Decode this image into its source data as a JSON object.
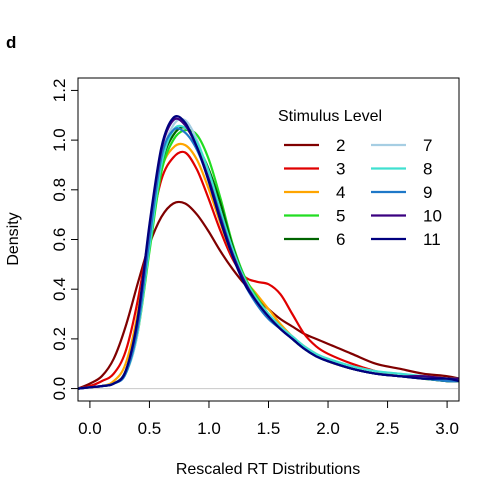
{
  "panel_label": "d",
  "chart_data": {
    "type": "line",
    "title": "",
    "xlabel": "Rescaled RT Distributions",
    "ylabel": "Density",
    "xlim": [
      -0.1,
      3.1
    ],
    "ylim": [
      -0.05,
      1.25
    ],
    "xticks": [
      0.0,
      0.5,
      1.0,
      1.5,
      2.0,
      2.5,
      3.0
    ],
    "xtick_labels": [
      "0.0",
      "0.5",
      "1.0",
      "1.5",
      "2.0",
      "2.5",
      "3.0"
    ],
    "yticks": [
      0.0,
      0.2,
      0.4,
      0.6,
      0.8,
      1.0,
      1.2
    ],
    "ytick_labels": [
      "0.0",
      "0.2",
      "0.4",
      "0.6",
      "0.8",
      "1.0",
      "1.2"
    ],
    "grid": false,
    "baseline": {
      "y": 0,
      "color": "#c8c8c8"
    },
    "legend": {
      "title": "Stimulus Level",
      "placement": "top-right",
      "columns": 2
    },
    "x": [
      -0.1,
      0.0,
      0.1,
      0.2,
      0.3,
      0.4,
      0.5,
      0.6,
      0.7,
      0.8,
      0.9,
      1.0,
      1.1,
      1.2,
      1.3,
      1.4,
      1.5,
      1.6,
      1.7,
      1.8,
      1.9,
      2.0,
      2.2,
      2.4,
      2.6,
      2.8,
      3.0,
      3.1
    ],
    "series": [
      {
        "name": "2",
        "color": "#800000",
        "values": [
          0.0,
          0.02,
          0.05,
          0.12,
          0.25,
          0.42,
          0.58,
          0.69,
          0.745,
          0.745,
          0.7,
          0.63,
          0.55,
          0.48,
          0.42,
          0.37,
          0.32,
          0.28,
          0.25,
          0.22,
          0.2,
          0.18,
          0.14,
          0.1,
          0.08,
          0.06,
          0.05,
          0.04
        ]
      },
      {
        "name": "3",
        "color": "#e00000",
        "values": [
          0.0,
          0.01,
          0.03,
          0.06,
          0.15,
          0.35,
          0.62,
          0.84,
          0.93,
          0.95,
          0.88,
          0.76,
          0.63,
          0.52,
          0.45,
          0.43,
          0.42,
          0.38,
          0.3,
          0.22,
          0.17,
          0.14,
          0.1,
          0.07,
          0.05,
          0.05,
          0.04,
          0.03
        ]
      },
      {
        "name": "4",
        "color": "#ffa500",
        "values": [
          0.0,
          0.005,
          0.01,
          0.03,
          0.1,
          0.3,
          0.62,
          0.88,
          0.97,
          0.98,
          0.92,
          0.8,
          0.66,
          0.53,
          0.44,
          0.38,
          0.32,
          0.26,
          0.21,
          0.17,
          0.14,
          0.11,
          0.08,
          0.06,
          0.05,
          0.04,
          0.03,
          0.03
        ]
      },
      {
        "name": "5",
        "color": "#22dd22",
        "values": [
          0.0,
          0.005,
          0.01,
          0.02,
          0.06,
          0.22,
          0.55,
          0.87,
          1.0,
          1.04,
          1.02,
          0.92,
          0.76,
          0.58,
          0.45,
          0.37,
          0.3,
          0.25,
          0.2,
          0.16,
          0.13,
          0.11,
          0.08,
          0.06,
          0.05,
          0.04,
          0.03,
          0.03
        ]
      },
      {
        "name": "6",
        "color": "#006400",
        "values": [
          0.0,
          0.005,
          0.01,
          0.02,
          0.07,
          0.25,
          0.6,
          0.9,
          1.02,
          1.05,
          0.98,
          0.88,
          0.74,
          0.57,
          0.44,
          0.36,
          0.3,
          0.25,
          0.2,
          0.16,
          0.13,
          0.11,
          0.08,
          0.06,
          0.05,
          0.04,
          0.03,
          0.03
        ]
      },
      {
        "name": "7",
        "color": "#a6cee3",
        "values": [
          0.0,
          0.005,
          0.01,
          0.02,
          0.06,
          0.22,
          0.58,
          0.92,
          1.06,
          1.08,
          1.0,
          0.86,
          0.7,
          0.55,
          0.44,
          0.36,
          0.3,
          0.25,
          0.21,
          0.17,
          0.14,
          0.12,
          0.09,
          0.07,
          0.06,
          0.05,
          0.04,
          0.04
        ]
      },
      {
        "name": "8",
        "color": "#40e0d0",
        "values": [
          0.0,
          0.005,
          0.01,
          0.02,
          0.06,
          0.23,
          0.57,
          0.9,
          1.04,
          1.05,
          0.99,
          0.87,
          0.71,
          0.56,
          0.44,
          0.36,
          0.3,
          0.25,
          0.21,
          0.17,
          0.14,
          0.12,
          0.09,
          0.07,
          0.06,
          0.05,
          0.04,
          0.04
        ]
      },
      {
        "name": "9",
        "color": "#1e78c8",
        "values": [
          0.0,
          0.005,
          0.01,
          0.02,
          0.06,
          0.24,
          0.6,
          0.93,
          1.04,
          1.03,
          0.96,
          0.84,
          0.69,
          0.54,
          0.42,
          0.34,
          0.28,
          0.24,
          0.2,
          0.16,
          0.13,
          0.11,
          0.08,
          0.06,
          0.05,
          0.04,
          0.03,
          0.03
        ]
      },
      {
        "name": "10",
        "color": "#3a0080",
        "values": [
          0.0,
          0.005,
          0.01,
          0.02,
          0.07,
          0.27,
          0.65,
          0.96,
          1.08,
          1.06,
          0.97,
          0.84,
          0.68,
          0.54,
          0.43,
          0.35,
          0.29,
          0.24,
          0.2,
          0.16,
          0.13,
          0.11,
          0.08,
          0.06,
          0.05,
          0.05,
          0.04,
          0.04
        ]
      },
      {
        "name": "11",
        "color": "#00007f",
        "values": [
          0.0,
          0.005,
          0.01,
          0.02,
          0.07,
          0.28,
          0.66,
          0.97,
          1.09,
          1.07,
          0.97,
          0.83,
          0.67,
          0.53,
          0.42,
          0.35,
          0.29,
          0.24,
          0.2,
          0.16,
          0.13,
          0.11,
          0.08,
          0.06,
          0.05,
          0.04,
          0.04,
          0.03
        ]
      }
    ]
  }
}
